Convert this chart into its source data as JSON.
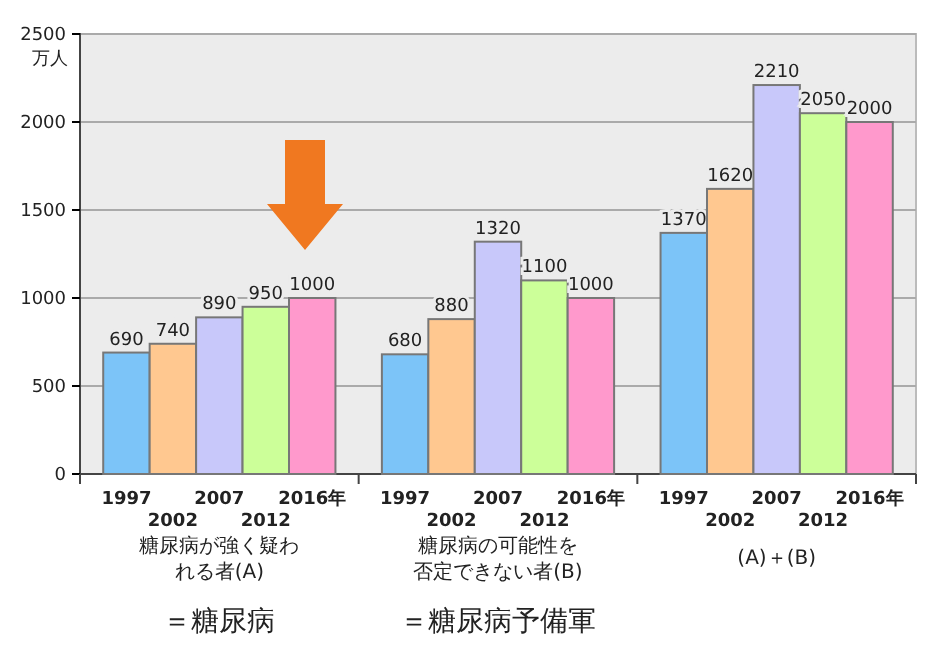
{
  "chart_data": {
    "type": "bar",
    "ylabel": "万人",
    "categories": [
      "糖尿病が強く疑われる者(A)",
      "糖尿病の可能性を否定できない者(B)",
      "(A)＋(B)"
    ],
    "series": [
      {
        "name": "1997",
        "color": "#7cc4f8",
        "values": [
          690,
          680,
          1370
        ]
      },
      {
        "name": "2002",
        "color": "#ffc890",
        "values": [
          740,
          880,
          1620
        ]
      },
      {
        "name": "2007",
        "color": "#c8c8fa",
        "values": [
          890,
          1320,
          2210
        ]
      },
      {
        "name": "2012",
        "color": "#ccff99",
        "values": [
          950,
          1100,
          2050
        ]
      },
      {
        "name": "2016年",
        "color": "#ff99cc",
        "values": [
          1000,
          1000,
          2000
        ]
      }
    ],
    "ylim": [
      0,
      2500
    ],
    "yticks": [
      0,
      500,
      1000,
      1500,
      2000,
      2500
    ],
    "grid": "y",
    "data_labels": true,
    "annotations": [
      "＝糖尿病",
      "＝糖尿病予備軍"
    ]
  }
}
